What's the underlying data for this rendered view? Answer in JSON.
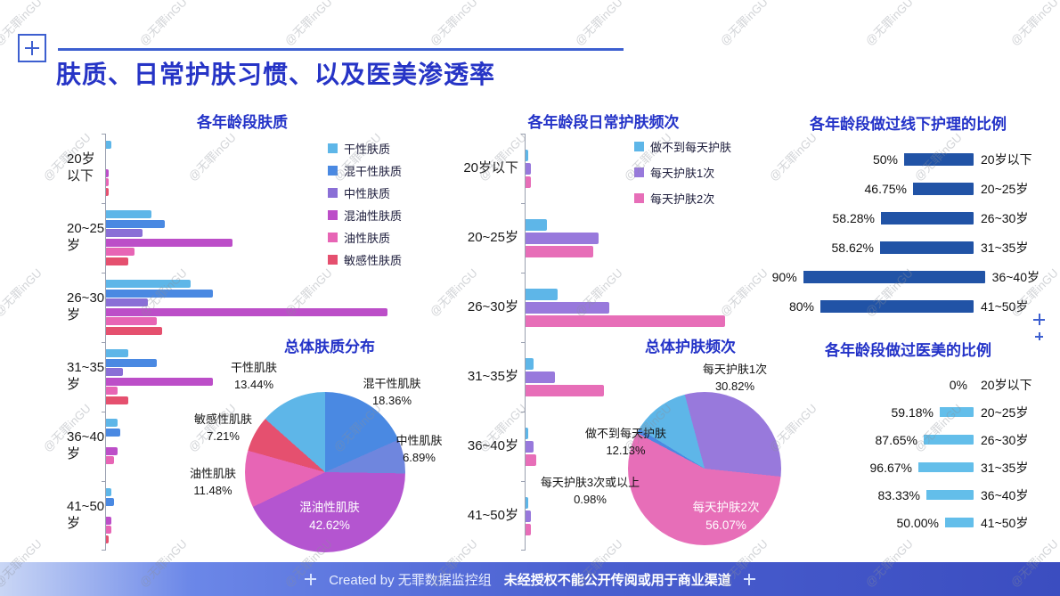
{
  "page": {
    "title": "肤质、日常护肤习惯、以及医美渗透率",
    "watermark_text": "@无罪inGU",
    "footer": {
      "created_by": "Created by 无罪数据监控组",
      "notice": "未经授权不能公开传阅或用于商业渠道"
    }
  },
  "colors": {
    "accent_blue": "#2634c6",
    "offline_bar": "#2153a6",
    "medical_bar": "#63beea"
  },
  "chart_data": [
    {
      "id": "skin-types-by-age",
      "type": "bar",
      "orientation": "horizontal",
      "title": "各年龄段肤质",
      "categories": [
        "20岁以下",
        "20~25岁",
        "26~30岁",
        "31~35岁",
        "36~40岁",
        "41~50岁"
      ],
      "series": [
        {
          "name": "干性肤质",
          "color": "#5eb6e8",
          "values": [
            2,
            16,
            30,
            8,
            4,
            2
          ]
        },
        {
          "name": "混干性肤质",
          "color": "#4a89e2",
          "values": [
            0,
            21,
            38,
            18,
            5,
            3
          ]
        },
        {
          "name": "中性肤质",
          "color": "#8a6fd6",
          "values": [
            0,
            13,
            15,
            6,
            0,
            0
          ]
        },
        {
          "name": "混油性肤质",
          "color": "#bc4ec8",
          "values": [
            1,
            45,
            100,
            38,
            4,
            2
          ]
        },
        {
          "name": "油性肤质",
          "color": "#e765b5",
          "values": [
            1,
            10,
            18,
            4,
            3,
            2
          ]
        },
        {
          "name": "敏感性肤质",
          "color": "#e5506f",
          "values": [
            1,
            8,
            20,
            8,
            0,
            1
          ]
        }
      ],
      "xlim": [
        0,
        115
      ],
      "legend_position": "right-top",
      "grid": false
    },
    {
      "id": "overall-skin-type",
      "type": "pie",
      "title": "总体肤质分布",
      "start_angle": -48.4,
      "slices": [
        {
          "name": "干性肌肤",
          "value": 13.44,
          "pct_label": "13.44%",
          "color": "#5eb6e8"
        },
        {
          "name": "混干性肌肤",
          "value": 18.36,
          "pct_label": "18.36%",
          "color": "#4a89e2"
        },
        {
          "name": "中性肌肤",
          "value": 6.89,
          "pct_label": "6.89%",
          "color": "#6f86de"
        },
        {
          "name": "混油性肌肤",
          "value": 42.62,
          "pct_label": "42.62%",
          "color": "#b455d0"
        },
        {
          "name": "油性肌肤",
          "value": 11.48,
          "pct_label": "11.48%",
          "color": "#e765b5"
        },
        {
          "name": "敏感性肌肤",
          "value": 7.21,
          "pct_label": "7.21%",
          "color": "#e5506f"
        }
      ]
    },
    {
      "id": "skincare-frequency-by-age",
      "type": "bar",
      "orientation": "horizontal",
      "title": "各年龄段日常护肤频次",
      "categories": [
        "20岁以下",
        "20~25岁",
        "26~30岁",
        "31~35岁",
        "36~40岁",
        "41~50岁"
      ],
      "series": [
        {
          "name": "做不到每天护肤",
          "color": "#5eb6e8",
          "values": [
            1,
            8,
            12,
            3,
            1,
            1
          ]
        },
        {
          "name": "每天护肤1次",
          "color": "#9879dc",
          "values": [
            2,
            27,
            31,
            11,
            3,
            2
          ]
        },
        {
          "name": "每天护肤2次",
          "color": "#e76eb8",
          "values": [
            2,
            25,
            74,
            29,
            4,
            2
          ]
        }
      ],
      "xlim": [
        0,
        86
      ],
      "legend_position": "right-top",
      "grid": false
    },
    {
      "id": "overall-skincare-frequency",
      "type": "pie",
      "title": "总体护肤频次",
      "start_angle": -15,
      "slices": [
        {
          "name": "每天护肤1次",
          "value": 30.82,
          "pct_label": "30.82%",
          "color": "#9879dc"
        },
        {
          "name": "每天护肤2次",
          "value": 56.07,
          "pct_label": "56.07%",
          "color": "#e76eb8"
        },
        {
          "name": "每天护肤3次或以上",
          "value": 0.98,
          "pct_label": "0.98%",
          "color": "#4a89e2"
        },
        {
          "name": "做不到每天护肤",
          "value": 12.13,
          "pct_label": "12.13%",
          "color": "#5eb6e8"
        }
      ]
    },
    {
      "id": "offline-care-by-age",
      "type": "bar",
      "orientation": "horizontal",
      "title": "各年龄段做过线下护理的比例",
      "bar_color": "#2153a6",
      "xlim": [
        25,
        100
      ],
      "rows": [
        {
          "age": "20岁以下",
          "value": 50,
          "pct_label": "50%"
        },
        {
          "age": "20~25岁",
          "value": 46.75,
          "pct_label": "46.75%"
        },
        {
          "age": "26~30岁",
          "value": 58.28,
          "pct_label": "58.28%"
        },
        {
          "age": "31~35岁",
          "value": 58.62,
          "pct_label": "58.62%"
        },
        {
          "age": "36~40岁",
          "value": 90,
          "pct_label": "90%"
        },
        {
          "age": "41~50岁",
          "value": 80,
          "pct_label": "80%"
        }
      ]
    },
    {
      "id": "medical-aesthetics-by-age",
      "type": "bar",
      "orientation": "horizontal",
      "title": "各年龄段做过医美的比例",
      "bar_color": "#63beea",
      "xlim": [
        0,
        100
      ],
      "rows": [
        {
          "age": "20岁以下",
          "value": 0,
          "pct_label": "0%"
        },
        {
          "age": "20~25岁",
          "value": 59.18,
          "pct_label": "59.18%"
        },
        {
          "age": "26~30岁",
          "value": 87.65,
          "pct_label": "87.65%"
        },
        {
          "age": "31~35岁",
          "value": 96.67,
          "pct_label": "96.67%"
        },
        {
          "age": "36~40岁",
          "value": 83.33,
          "pct_label": "83.33%"
        },
        {
          "age": "41~50岁",
          "value": 50.0,
          "pct_label": "50.00%"
        }
      ]
    }
  ]
}
